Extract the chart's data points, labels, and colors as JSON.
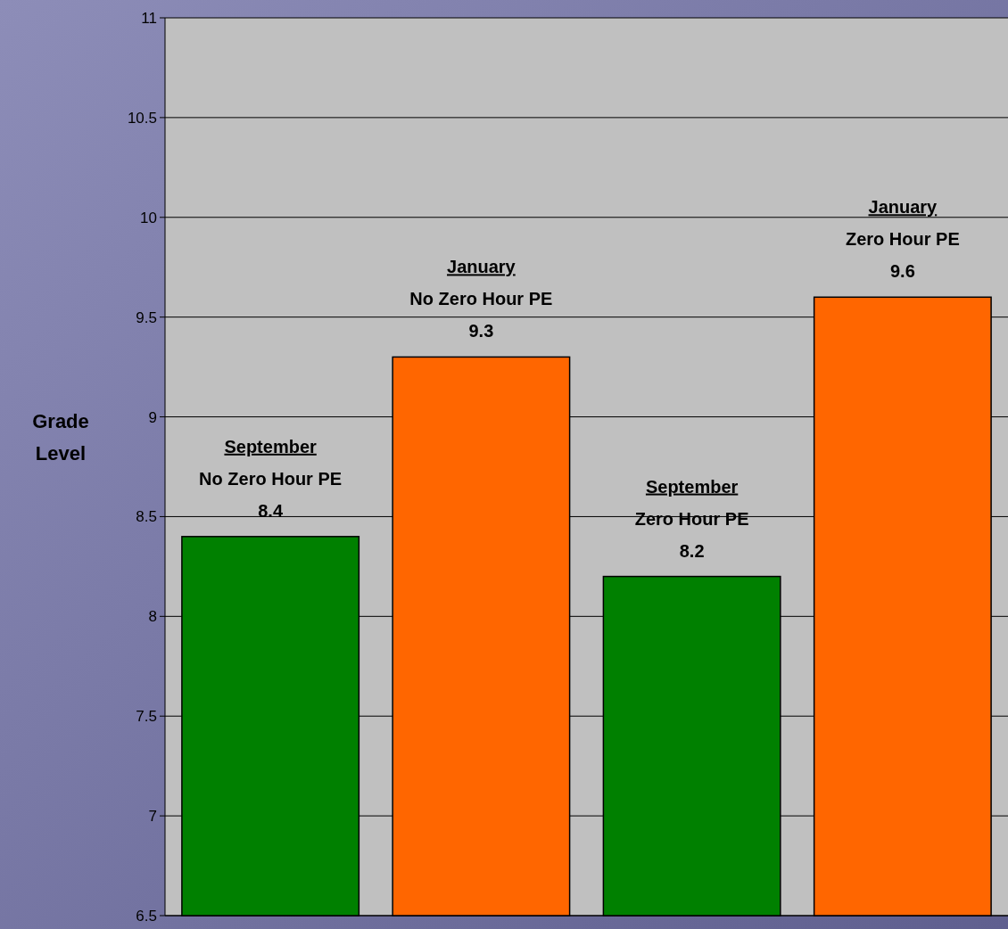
{
  "chart_data": {
    "type": "bar",
    "ylabel": "Grade Level",
    "categories": [
      "September\nNo Zero Hour PE",
      "January\nNo Zero Hour PE",
      "September\nZero Hour PE",
      "January\nZero Hour PE"
    ],
    "values": [
      8.4,
      9.3,
      8.2,
      9.6
    ],
    "colors": [
      "#008000",
      "#ff6600",
      "#008000",
      "#ff6600"
    ],
    "ylim": [
      6.5,
      11
    ],
    "yticks": [
      6.5,
      7,
      7.5,
      8,
      8.5,
      9,
      9.5,
      10,
      10.5,
      11
    ],
    "grid": "y",
    "data_labels": true
  }
}
